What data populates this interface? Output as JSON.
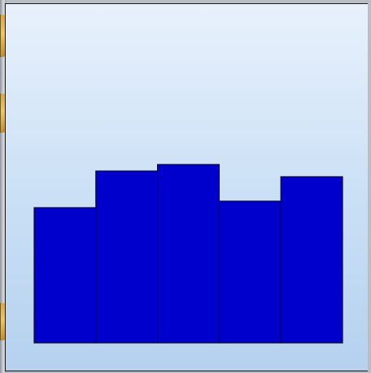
{
  "chart_data": {
    "type": "bar",
    "title": "",
    "xlabel": "",
    "ylabel": "",
    "categories": [
      "",
      "",
      "",
      "",
      ""
    ],
    "values": [
      166,
      211,
      219,
      174,
      204
    ],
    "ylim": [
      0,
      420
    ],
    "grid": false,
    "legend": "none",
    "colors": {
      "bar": "#0000cd",
      "background_top": "#e8f1fc",
      "background_bottom": "#b5d1ef"
    }
  }
}
